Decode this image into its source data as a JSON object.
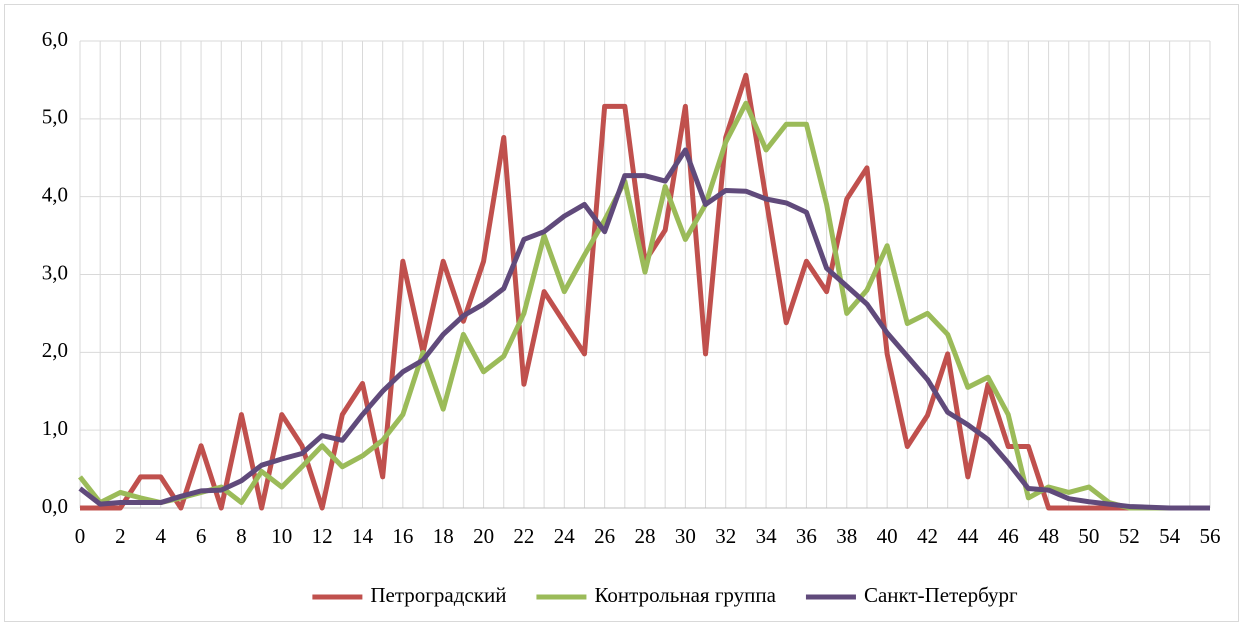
{
  "chart_data": {
    "type": "line",
    "x": [
      0,
      1,
      2,
      3,
      4,
      5,
      6,
      7,
      8,
      9,
      10,
      11,
      12,
      13,
      14,
      15,
      16,
      17,
      18,
      19,
      20,
      21,
      22,
      23,
      24,
      25,
      26,
      27,
      28,
      29,
      30,
      31,
      32,
      33,
      34,
      35,
      36,
      37,
      38,
      39,
      40,
      41,
      42,
      43,
      44,
      45,
      46,
      47,
      48,
      49,
      50,
      51,
      52,
      53,
      54,
      55,
      56
    ],
    "xlim": [
      0,
      56
    ],
    "xticks": [
      0,
      2,
      4,
      6,
      8,
      10,
      12,
      14,
      16,
      18,
      20,
      22,
      24,
      26,
      28,
      30,
      32,
      34,
      36,
      38,
      40,
      42,
      44,
      46,
      48,
      50,
      52,
      54,
      56
    ],
    "ylim": [
      0,
      6
    ],
    "yticks": [
      {
        "value": 0,
        "label": "0,0"
      },
      {
        "value": 1,
        "label": "1,0"
      },
      {
        "value": 2,
        "label": "2,0"
      },
      {
        "value": 3,
        "label": "3,0"
      },
      {
        "value": 4,
        "label": "4,0"
      },
      {
        "value": 5,
        "label": "5,0"
      },
      {
        "value": 6,
        "label": "6,0"
      }
    ],
    "grid": true,
    "legend": "bottom",
    "series": [
      {
        "name": "Петроградский",
        "color": "#c0504d",
        "values": [
          0,
          0,
          0,
          0.4,
          0.4,
          0,
          0.8,
          0,
          1.2,
          0,
          1.2,
          0.8,
          0,
          1.2,
          1.6,
          0.4,
          3.17,
          2.0,
          3.17,
          2.4,
          3.17,
          4.76,
          1.59,
          2.78,
          2.38,
          1.98,
          5.16,
          5.16,
          3.17,
          3.57,
          5.16,
          1.98,
          4.76,
          5.56,
          3.97,
          2.38,
          3.17,
          2.78,
          3.97,
          4.37,
          1.98,
          0.79,
          1.19,
          1.98,
          0.4,
          1.59,
          0.79,
          0.79,
          0,
          0,
          0,
          0,
          0,
          0,
          0,
          0,
          0
        ]
      },
      {
        "name": "Контрольная группа",
        "color": "#9bbb59",
        "values": [
          0.4,
          0.07,
          0.2,
          0.13,
          0.07,
          0.13,
          0.2,
          0.27,
          0.07,
          0.47,
          0.27,
          0.53,
          0.8,
          0.53,
          0.67,
          0.87,
          1.2,
          2.0,
          1.27,
          2.23,
          1.75,
          1.95,
          2.5,
          3.5,
          2.78,
          3.25,
          3.7,
          4.2,
          3.03,
          4.13,
          3.45,
          3.9,
          4.7,
          5.2,
          4.6,
          4.93,
          4.93,
          3.9,
          2.5,
          2.8,
          3.37,
          2.37,
          2.5,
          2.23,
          1.55,
          1.68,
          1.2,
          0.13,
          0.27,
          0.2,
          0.27,
          0.07,
          0,
          0,
          0,
          0,
          0
        ]
      },
      {
        "name": "Санкт-Петербург",
        "color": "#604a7b",
        "values": [
          0.25,
          0.05,
          0.07,
          0.07,
          0.07,
          0.15,
          0.22,
          0.23,
          0.35,
          0.55,
          0.63,
          0.7,
          0.93,
          0.87,
          1.2,
          1.5,
          1.75,
          1.9,
          2.23,
          2.47,
          2.62,
          2.82,
          3.45,
          3.55,
          3.75,
          3.9,
          3.55,
          4.27,
          4.27,
          4.2,
          4.6,
          3.9,
          4.08,
          4.07,
          3.97,
          3.92,
          3.8,
          3.08,
          2.85,
          2.62,
          2.25,
          1.95,
          1.65,
          1.23,
          1.07,
          0.88,
          0.58,
          0.25,
          0.23,
          0.12,
          0.08,
          0.05,
          0.02,
          0.01,
          0,
          0,
          0
        ]
      }
    ]
  }
}
